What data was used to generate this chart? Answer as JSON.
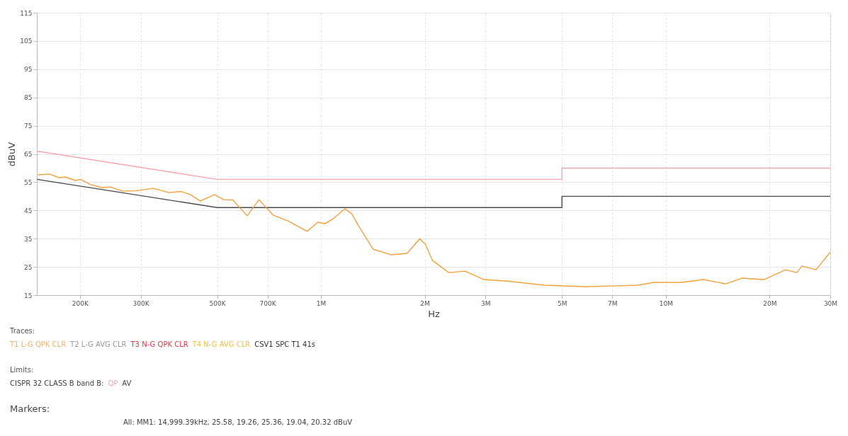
{
  "chart_data": {
    "type": "line",
    "xlabel": "Hz",
    "ylabel": "dBuV",
    "log": "x",
    "grid": true,
    "xlim": [
      150000,
      30000000
    ],
    "xticks": [
      {
        "value": 200000,
        "label": "200K"
      },
      {
        "value": 300000,
        "label": "300K"
      },
      {
        "value": 500000,
        "label": "500K"
      },
      {
        "value": 700000,
        "label": "700K"
      },
      {
        "value": 1000000,
        "label": "1M"
      },
      {
        "value": 2000000,
        "label": "2M"
      },
      {
        "value": 3000000,
        "label": "3M"
      },
      {
        "value": 5000000,
        "label": "5M"
      },
      {
        "value": 7000000,
        "label": "7M"
      },
      {
        "value": 10000000,
        "label": "10M"
      },
      {
        "value": 20000000,
        "label": "20M"
      },
      {
        "value": 30000000,
        "label": "30M"
      }
    ],
    "ylim": [
      15,
      115
    ],
    "yticks": [
      15,
      25,
      35,
      45,
      55,
      65,
      75,
      85,
      95,
      105,
      115
    ],
    "series": [
      {
        "color": "#f6a5ae",
        "x": [
          150000,
          500000,
          5000000,
          5000000,
          30000000
        ],
        "values": [
          66,
          56,
          56,
          60,
          60
        ]
      },
      {
        "color": "#4a4a4a",
        "x": [
          150000,
          500000,
          5000000,
          5000000,
          30000000
        ],
        "values": [
          56,
          46,
          46,
          50,
          50
        ]
      },
      {
        "color": "#f5a03c",
        "x": [
          151000,
          163000,
          174000,
          182000,
          194000,
          201000,
          213000,
          231000,
          245000,
          266000,
          292000,
          326000,
          363000,
          393000,
          418000,
          447000,
          491000,
          522000,
          555000,
          611000,
          661000,
          727000,
          803000,
          912000,
          979000,
          1027000,
          1092000,
          1172000,
          1229000,
          1282000,
          1416000,
          1593000,
          1777000,
          1935000,
          2009000,
          2106000,
          2348000,
          2618000,
          2975000,
          3444000,
          4466000,
          5873000,
          7163000,
          8292000,
          9246000,
          11115000,
          12870000,
          14900000,
          16620000,
          19230000,
          22270000,
          24010000,
          24820000,
          27290000,
          30000000
        ],
        "values": [
          57.6,
          57.9,
          56.6,
          56.8,
          55.6,
          56,
          54.3,
          53.1,
          53.3,
          51.8,
          52,
          52.8,
          51.3,
          51.7,
          50.6,
          48.3,
          50.6,
          48.8,
          48.7,
          43.1,
          48.8,
          43.3,
          41.3,
          37.6,
          40.8,
          40.3,
          42.3,
          45.6,
          43.8,
          39.8,
          31.3,
          29.3,
          29.8,
          35,
          33,
          27.3,
          23,
          23.5,
          20.5,
          20,
          18.5,
          18,
          18.3,
          18.5,
          19.5,
          19.5,
          20.5,
          19,
          21,
          20.5,
          24,
          23,
          25.3,
          24,
          30.3
        ]
      }
    ],
    "annotations": [
      "Traces:",
      "T1 L-G QPK CLR",
      "T2 L-G AVG CLR",
      "T3 N-G QPK CLR",
      "T4 N-G AVG CLR",
      "CSV1 SPC T1 41s",
      "Limits:",
      "CISPR 32 CLASS B band B:",
      "QP",
      "AV",
      "Markers:",
      "All: MM1: 14,999.39kHz, 25.58, 19.26, 25.36, 19.04, 20.32 dBuV"
    ]
  }
}
